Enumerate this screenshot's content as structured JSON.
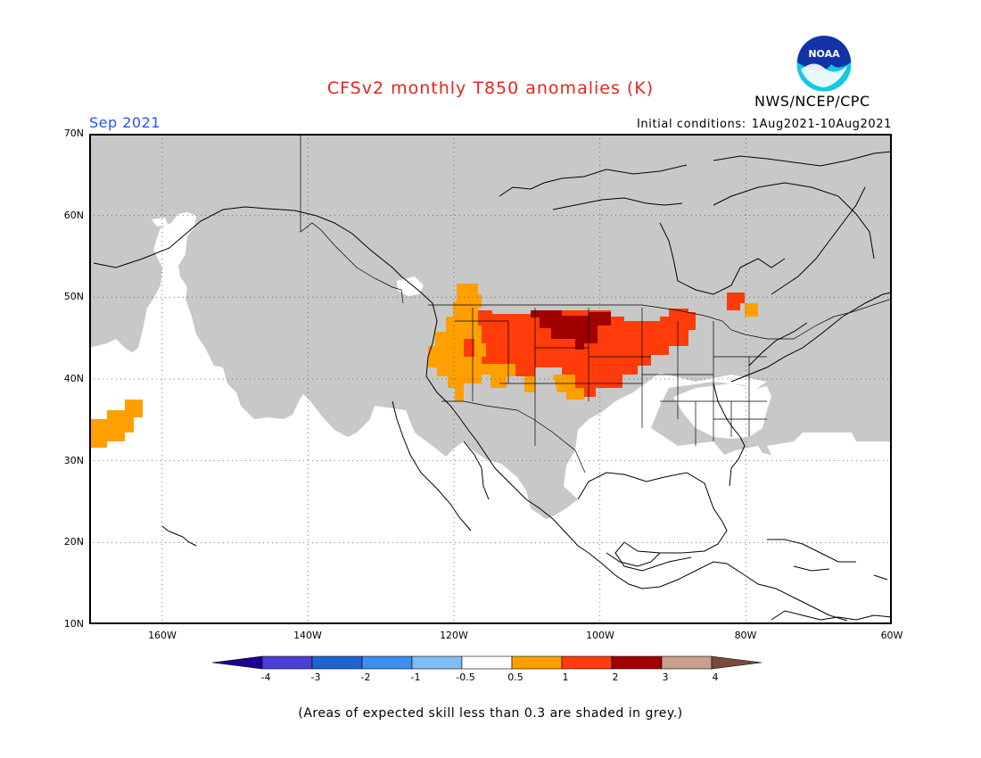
{
  "title": "CFSv2 monthly T850 anomalies (K)",
  "org": "NWS/NCEP/CPC",
  "logo_text": "NOAA",
  "month": "Sep 2021",
  "initial_conditions": {
    "label": "Initial conditions:",
    "value": "1Aug2021-10Aug2021"
  },
  "axes": {
    "lat_labels": [
      "70N",
      "60N",
      "50N",
      "40N",
      "30N",
      "20N",
      "10N"
    ],
    "lon_labels": [
      "160W",
      "140W",
      "120W",
      "100W",
      "80W",
      "60W"
    ]
  },
  "colorbar": {
    "labels": [
      "-4",
      "-3",
      "-2",
      "-1",
      "-0.5",
      "0.5",
      "1",
      "2",
      "3",
      "4"
    ],
    "colors": [
      "#1e0090",
      "#4a3fd4",
      "#1f63d0",
      "#3a8ff0",
      "#80bdf5",
      "#ffffff",
      "#ffa000",
      "#ff3c0a",
      "#a00000",
      "#c8a090",
      "#7a4a38"
    ]
  },
  "note": "(Areas of expected skill less than 0.3 are shaded in grey.)",
  "colors": {
    "title": "#e8241c",
    "month": "#2255ee",
    "grey_mask": "#c8c8c8",
    "anomaly_05_1": "#ffa000",
    "anomaly_1_2": "#ff3c0a",
    "anomaly_2_3": "#a00000"
  }
}
